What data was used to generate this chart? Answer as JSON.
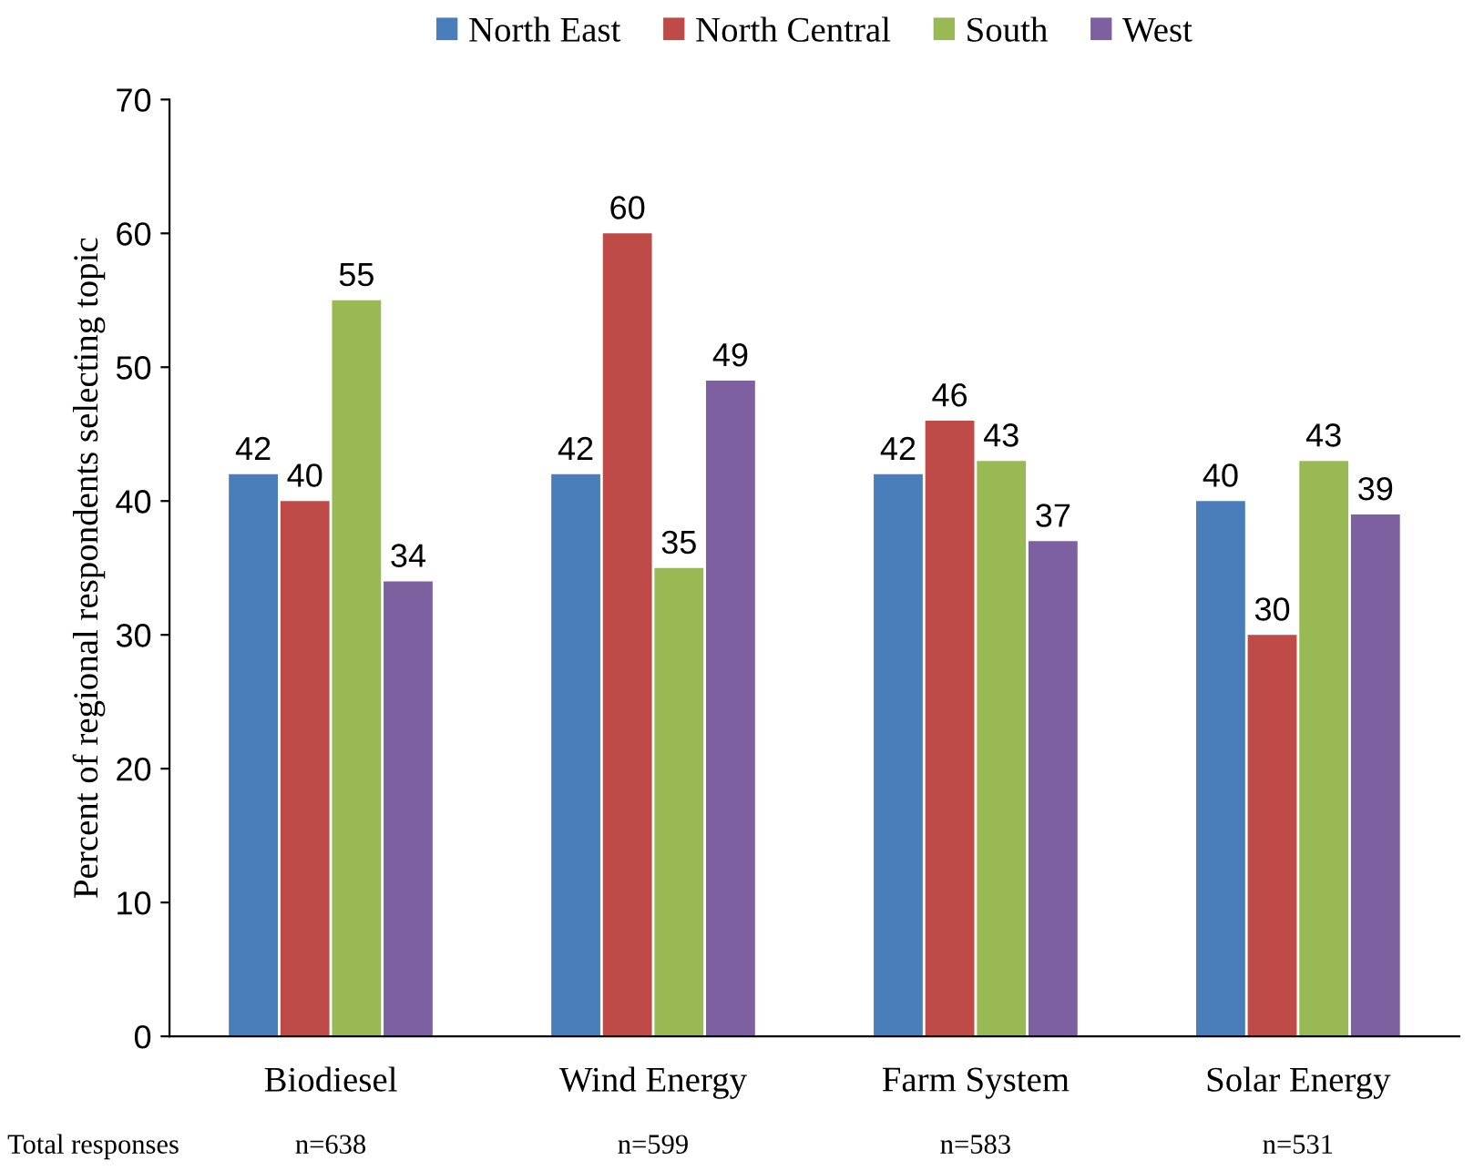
{
  "chart_data": {
    "type": "bar",
    "ylabel": "Percent of regional respondents selecting topic",
    "categories": [
      "Biodiesel",
      "Wind Energy",
      "Farm System",
      "Solar Energy"
    ],
    "series": [
      {
        "name": "North East",
        "color": "#4a7ebb",
        "values": [
          42,
          42,
          42,
          40
        ]
      },
      {
        "name": "North Central",
        "color": "#be4b48",
        "values": [
          40,
          60,
          46,
          30
        ]
      },
      {
        "name": "South",
        "color": "#98b954",
        "values": [
          55,
          35,
          43,
          43
        ]
      },
      {
        "name": "West",
        "color": "#7d60a0",
        "values": [
          34,
          49,
          37,
          39
        ]
      }
    ],
    "ylim": [
      0,
      70
    ],
    "yticks": [
      0,
      10,
      20,
      30,
      40,
      50,
      60,
      70
    ],
    "data_labels": true,
    "grid": false,
    "legend": "top",
    "annotations": [
      "Total responses",
      "n=638",
      "n=599",
      "n=583",
      "n=531"
    ]
  }
}
